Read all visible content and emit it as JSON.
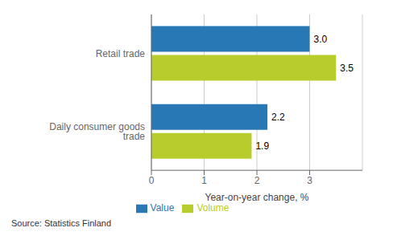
{
  "chart_data": {
    "type": "bar",
    "orientation": "horizontal",
    "categories": [
      "Daily consumer goods trade",
      "Retail trade"
    ],
    "series": [
      {
        "name": "Value",
        "color": "#2878b5",
        "values": [
          2.2,
          3.0
        ],
        "value_labels": [
          "2.2",
          "3.0"
        ]
      },
      {
        "name": "Volume",
        "color": "#b8cc2c",
        "values": [
          1.9,
          3.5
        ],
        "value_labels": [
          "1.9",
          "3.5"
        ]
      }
    ],
    "x_label": "Year-on-year change, %",
    "xlim": [
      0,
      4.0
    ],
    "xticks": [
      0,
      1,
      2,
      3
    ],
    "grid": true,
    "data_labels": true,
    "legend": "bottom",
    "annotation": "Source: Statistics Finland"
  }
}
